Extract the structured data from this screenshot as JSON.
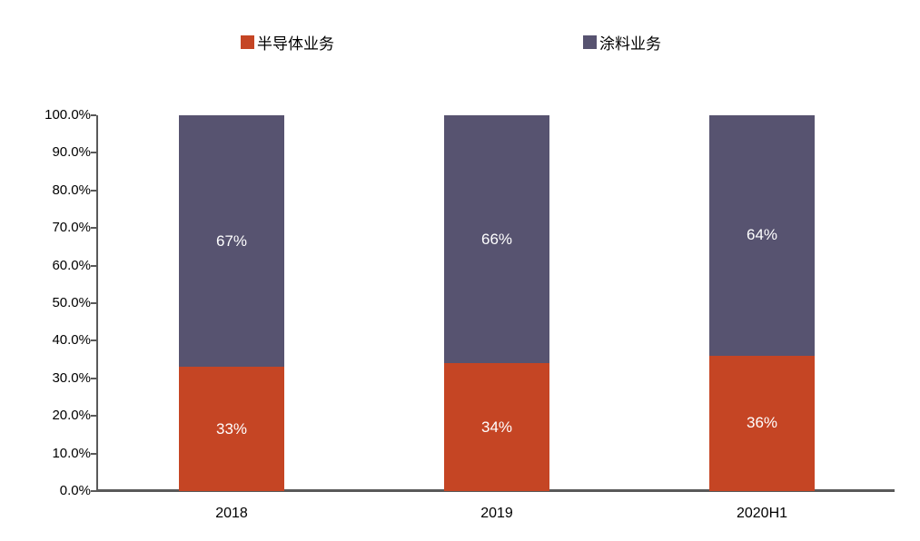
{
  "chart_data": {
    "type": "bar",
    "stacked": true,
    "percent_stacked": true,
    "title": "",
    "xlabel": "",
    "ylabel": "",
    "categories": [
      "2018",
      "2019",
      "2020H1"
    ],
    "series": [
      {
        "name": "半导体业务",
        "color": "#c54524",
        "values": [
          33,
          34,
          36
        ],
        "labels": [
          "33%",
          "34%",
          "36%"
        ]
      },
      {
        "name": "涂料业务",
        "color": "#575370",
        "values": [
          67,
          66,
          64
        ],
        "labels": [
          "67%",
          "66%",
          "64%"
        ]
      }
    ],
    "ylim": [
      0,
      100
    ],
    "yticks": [
      0,
      10,
      20,
      30,
      40,
      50,
      60,
      70,
      80,
      90,
      100
    ],
    "ytick_labels": [
      "0.0%",
      "10.0%",
      "20.0%",
      "30.0%",
      "40.0%",
      "50.0%",
      "60.0%",
      "70.0%",
      "80.0%",
      "90.0%",
      "100.0%"
    ],
    "grid": false,
    "legend_position": "top",
    "data_label_color": "#ffffff",
    "axis_color": "#595959",
    "text_color": "#000000",
    "background_color": "#ffffff"
  }
}
